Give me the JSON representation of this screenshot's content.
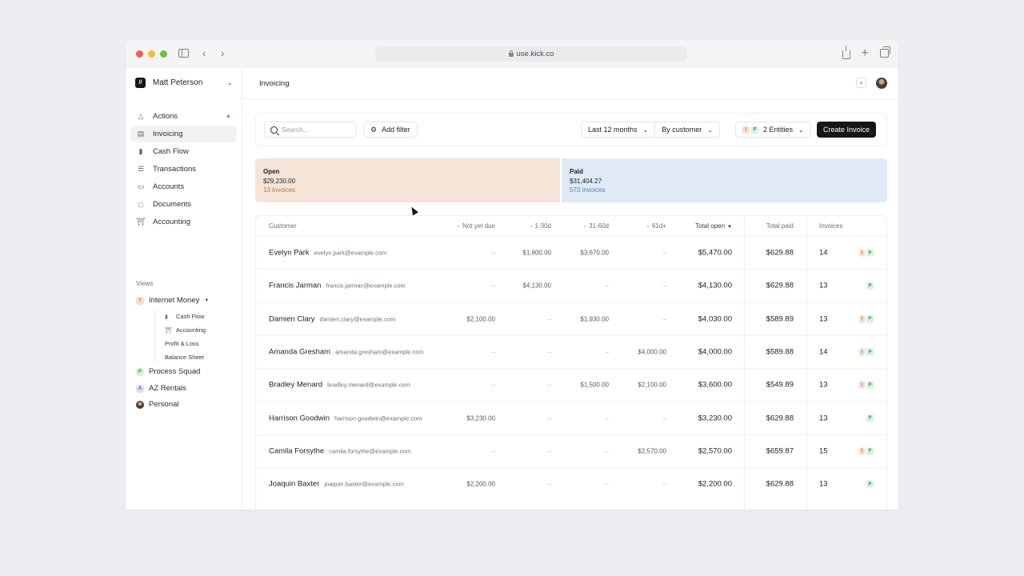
{
  "browser": {
    "url": "use.kick.co",
    "traffic_colors": [
      "#ee5f57",
      "#f5bd2f",
      "#5fc53f"
    ]
  },
  "sidebar": {
    "user_name": "Matt Peterson",
    "nav": [
      {
        "label": "Actions",
        "icon": "actions-icon"
      },
      {
        "label": "Invoicing",
        "icon": "invoice-icon"
      },
      {
        "label": "Cash Flow",
        "icon": "bar-chart-icon"
      },
      {
        "label": "Transactions",
        "icon": "list-icon"
      },
      {
        "label": "Accounts",
        "icon": "wallet-icon"
      },
      {
        "label": "Documents",
        "icon": "document-icon"
      },
      {
        "label": "Accounting",
        "icon": "bank-icon"
      }
    ],
    "views_label": "Views",
    "views": [
      {
        "label": "Internet Money",
        "badge": "I"
      },
      {
        "label": "Process Squad",
        "badge": "P"
      },
      {
        "label": "AZ Rentals",
        "badge": "A"
      },
      {
        "label": "Personal",
        "badge": ""
      }
    ],
    "subviews": [
      "Cash Flow",
      "Accounting",
      "Profit & Loss",
      "Balance Sheet"
    ]
  },
  "header": {
    "title": "Invoicing"
  },
  "toolbar": {
    "search_placeholder": "Search...",
    "add_filter": "Add filter",
    "period": "Last 12 months",
    "group_by": "By customer",
    "entities": "2 Entities",
    "entity_badges": [
      "I",
      "P"
    ],
    "create": "Create Invoice"
  },
  "summary": {
    "open": {
      "title": "Open",
      "amount": "$29,230.00",
      "count": "13 invoices",
      "color": "#f6e4d8"
    },
    "paid": {
      "title": "Paid",
      "amount": "$31,404.27",
      "count": "573 invoices",
      "color": "#dfeaf6"
    },
    "open_fraction": 0.482
  },
  "table": {
    "headers": {
      "customer": "Customer",
      "not_yet_due": "Not yet due",
      "d1_30": "1-30d",
      "d31_60": "31-60d",
      "d61": "61d+",
      "total_open": "Total open",
      "total_paid": "Total paid",
      "invoices": "Invoices"
    },
    "rows": [
      {
        "name": "Evelyn Park",
        "email": "evelyn.park@example.com",
        "nyd": "–",
        "d30": "$1,800.00",
        "d60": "$3,670.00",
        "d61": "–",
        "open": "$5,470.00",
        "paid": "$629.88",
        "inv": "14",
        "tags": [
          "I",
          "P"
        ]
      },
      {
        "name": "Francis Jarman",
        "email": "francis.jarman@example.com",
        "nyd": "–",
        "d30": "$4,130.00",
        "d60": "–",
        "d61": "–",
        "open": "$4,130.00",
        "paid": "$629.88",
        "inv": "13",
        "tags": [
          "P"
        ]
      },
      {
        "name": "Damien Clary",
        "email": "damien.clary@example.com",
        "nyd": "$2,100.00",
        "d30": "–",
        "d60": "$1,930.00",
        "d61": "–",
        "open": "$4,030.00",
        "paid": "$589.89",
        "inv": "13",
        "tags": [
          "I",
          "P"
        ]
      },
      {
        "name": "Amanda Gresham",
        "email": "amanda.gresham@example.com",
        "nyd": "–",
        "d30": "–",
        "d60": "–",
        "d61": "$4,000.00",
        "open": "$4,000.00",
        "paid": "$589.88",
        "inv": "14",
        "tags": [
          "I",
          "P"
        ]
      },
      {
        "name": "Bradley Menard",
        "email": "bradley.menard@example.com",
        "nyd": "–",
        "d30": "–",
        "d60": "$1,500.00",
        "d61": "$2,100.00",
        "open": "$3,600.00",
        "paid": "$549.89",
        "inv": "13",
        "tags": [
          "I",
          "P"
        ]
      },
      {
        "name": "Harrison Goodwin",
        "email": "harrison.goodwin@example.com",
        "nyd": "$3,230.00",
        "d30": "–",
        "d60": "–",
        "d61": "–",
        "open": "$3,230.00",
        "paid": "$629.88",
        "inv": "13",
        "tags": [
          "P"
        ]
      },
      {
        "name": "Camila Forsythe",
        "email": "camila.forsythe@example.com",
        "nyd": "–",
        "d30": "–",
        "d60": "–",
        "d61": "$2,570.00",
        "open": "$2,570.00",
        "paid": "$659.87",
        "inv": "15",
        "tags": [
          "I",
          "P"
        ]
      },
      {
        "name": "Joaquin Baxter",
        "email": "joaquin.baxter@example.com",
        "nyd": "$2,200.00",
        "d30": "–",
        "d60": "–",
        "d61": "–",
        "open": "$2,200.00",
        "paid": "$629.88",
        "inv": "13",
        "tags": [
          "P"
        ]
      }
    ]
  }
}
